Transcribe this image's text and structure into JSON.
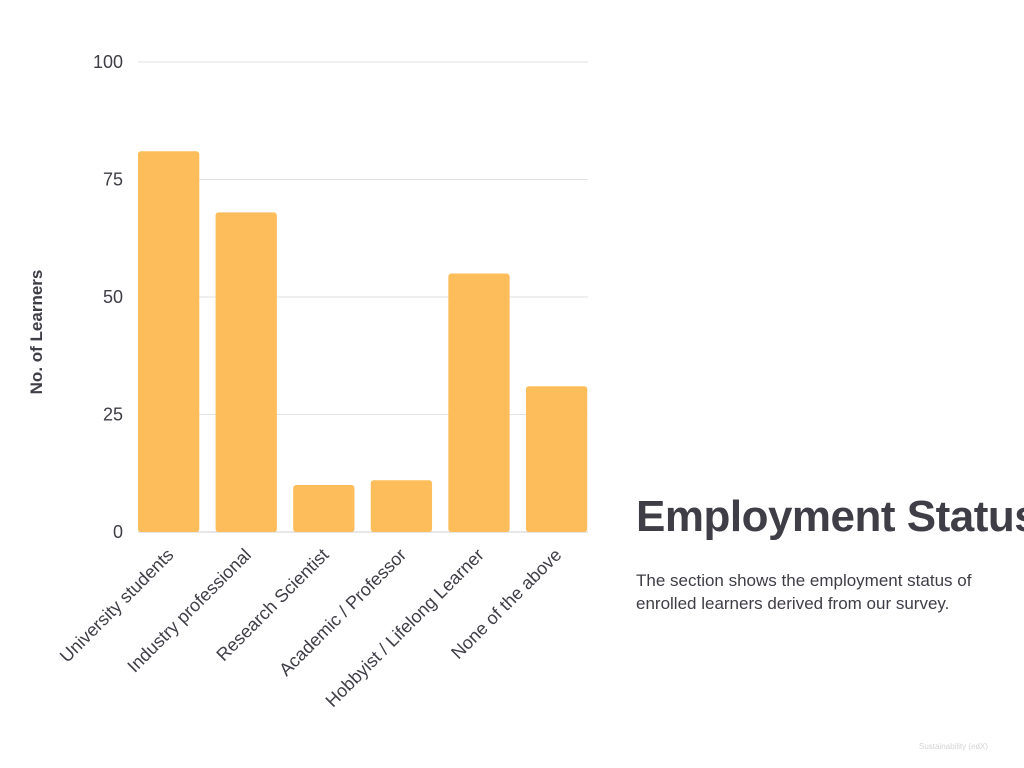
{
  "chart_data": {
    "type": "bar",
    "categories": [
      "University students",
      "Industry professional",
      "Research Scientist",
      "Academic / Professor",
      "Hobbyist / Lifelong Learner",
      "None of the above"
    ],
    "values": [
      81,
      68,
      10,
      11,
      55,
      31
    ],
    "ylabel": "No. of Learners",
    "xlabel": "",
    "ylim": [
      0,
      100
    ],
    "yticks": [
      0,
      25,
      50,
      75,
      100
    ],
    "grid": true,
    "bar_color": "#fdbd5a",
    "grid_color": "#e2e2e2"
  },
  "page": {
    "title": "Employment Status",
    "description": "The section shows the employment status of enrolled learners derived from our survey.",
    "footer": "Sustainability (edX)"
  }
}
